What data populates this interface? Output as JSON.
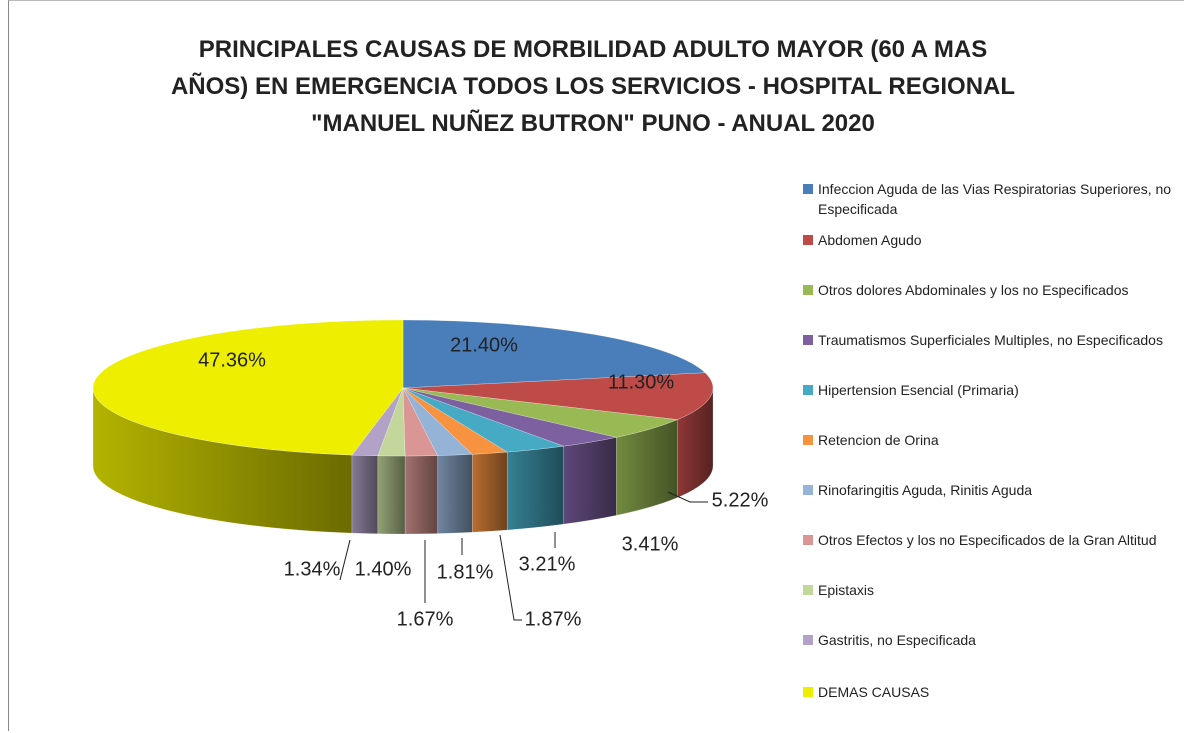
{
  "chart_data": {
    "type": "pie3d",
    "title": [
      "PRINCIPALES CAUSAS DE MORBILIDAD ADULTO MAYOR (60 A MAS",
      "AÑOS) EN EMERGENCIA TODOS LOS SERVICIOS - HOSPITAL REGIONAL",
      "\"MANUEL NUÑEZ BUTRON\" PUNO - ANUAL 2020"
    ],
    "categories": [
      "Infeccion Aguda de las Vias Respiratorias Superiores, no Especificada",
      "Abdomen Agudo",
      "Otros dolores Abdominales y los no Especificados",
      "Traumatismos Superficiales Multiples, no Especificados",
      "Hipertension Esencial (Primaria)",
      "Retencion de Orina",
      "Rinofaringitis Aguda, Rinitis Aguda",
      "Otros Efectos y los no Especificados de la Gran Altitud",
      "Epistaxis",
      "Gastritis, no Especificada",
      "DEMAS CAUSAS"
    ],
    "values": [
      21.4,
      11.3,
      5.22,
      3.41,
      3.21,
      1.87,
      1.81,
      1.67,
      1.4,
      1.34,
      47.36
    ],
    "value_labels": [
      "21.40%",
      "11.30%",
      "5.22%",
      "3.41%",
      "3.21%",
      "1.87%",
      "1.81%",
      "1.67%",
      "1.40%",
      "1.34%",
      "47.36%"
    ],
    "colors": [
      "#4a7ebb",
      "#be4b48",
      "#98b954",
      "#7d60a0",
      "#46aac5",
      "#f69240",
      "#95b3d7",
      "#d99694",
      "#c3d69b",
      "#b3a2c7",
      "#eeee00"
    ],
    "legend": "right"
  }
}
